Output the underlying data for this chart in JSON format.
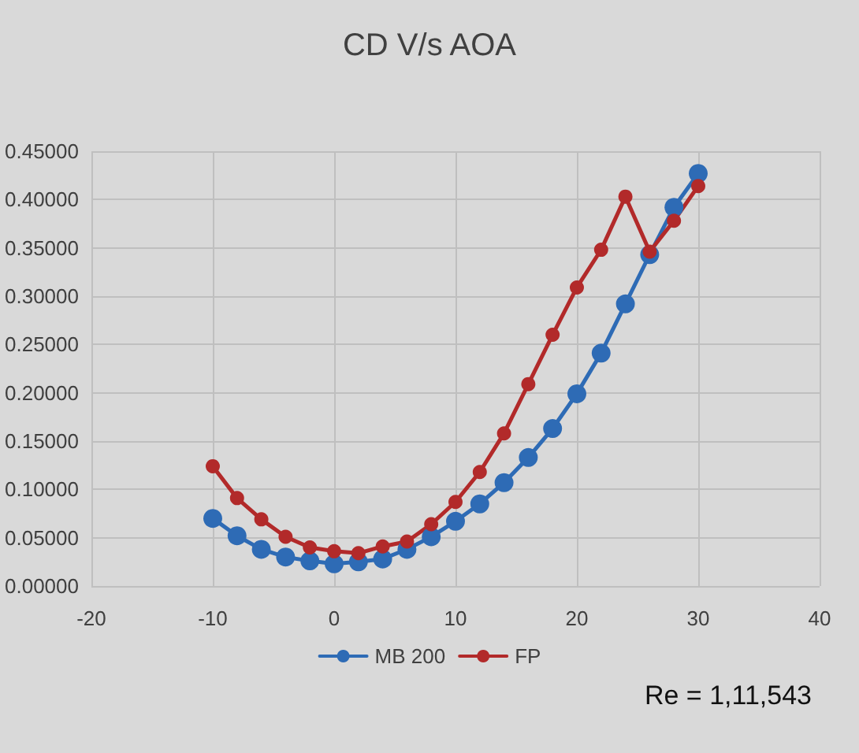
{
  "chart_data": {
    "type": "line",
    "title": "CD V/s AOA",
    "x": [
      -10,
      -8,
      -6,
      -4,
      -2,
      0,
      2,
      4,
      6,
      8,
      10,
      12,
      14,
      16,
      18,
      20,
      22,
      24,
      26,
      28,
      30
    ],
    "series": [
      {
        "name": "MB 200",
        "color": "#2e6bb5",
        "values": [
          0.07,
          0.052,
          0.038,
          0.03,
          0.026,
          0.023,
          0.025,
          0.028,
          0.038,
          0.051,
          0.067,
          0.085,
          0.107,
          0.133,
          0.163,
          0.199,
          0.241,
          0.292,
          0.343,
          0.392,
          0.427
        ]
      },
      {
        "name": "FP",
        "color": "#b22a2a",
        "values": [
          0.124,
          0.091,
          0.069,
          0.051,
          0.04,
          0.036,
          0.034,
          0.041,
          0.046,
          0.064,
          0.087,
          0.118,
          0.158,
          0.209,
          0.26,
          0.309,
          0.348,
          0.403,
          0.346,
          0.378,
          0.414
        ]
      }
    ],
    "xlim": [
      -20,
      40
    ],
    "xticks": [
      -20,
      -10,
      0,
      10,
      20,
      30,
      40
    ],
    "ylim": [
      0,
      0.45
    ],
    "yticks": [
      {
        "value": 0,
        "label": "0.00000"
      },
      {
        "value": 0.05,
        "label": "0.05000"
      },
      {
        "value": 0.1,
        "label": "0.10000"
      },
      {
        "value": 0.15,
        "label": "0.15000"
      },
      {
        "value": 0.2,
        "label": "0.20000"
      },
      {
        "value": 0.25,
        "label": "0.25000"
      },
      {
        "value": 0.3,
        "label": "0.30000"
      },
      {
        "value": 0.35,
        "label": "0.35000"
      },
      {
        "value": 0.4,
        "label": "0.40000"
      },
      {
        "value": 0.45,
        "label": "0.45000"
      }
    ],
    "grid": true,
    "legend": "bottom",
    "marker": "circle",
    "line_style": "solid",
    "annotations": [
      "Re = 1,11,543"
    ]
  }
}
